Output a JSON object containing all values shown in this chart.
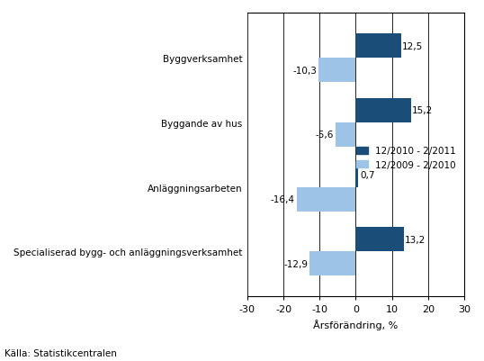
{
  "categories": [
    "Specialiserad bygg- och anläggningsverksamhet",
    "Anläggningsarbeten",
    "Byggande av hus",
    "Byggverksamhet"
  ],
  "series1_label": "12/2010 - 2/2011",
  "series2_label": "12/2009 - 2/2010",
  "series1_values": [
    13.2,
    0.7,
    15.2,
    12.5
  ],
  "series2_values": [
    -12.9,
    -16.4,
    -5.6,
    -10.3
  ],
  "series1_color": "#1A4E79",
  "series2_color": "#9DC3E6",
  "xlim": [
    -30,
    30
  ],
  "xticks": [
    -30,
    -20,
    -10,
    0,
    10,
    20,
    30
  ],
  "xlabel": "Årsförändring, %",
  "source": "Källa: Statistikcentralen",
  "bar_height": 0.38,
  "background_color": "#FFFFFF"
}
